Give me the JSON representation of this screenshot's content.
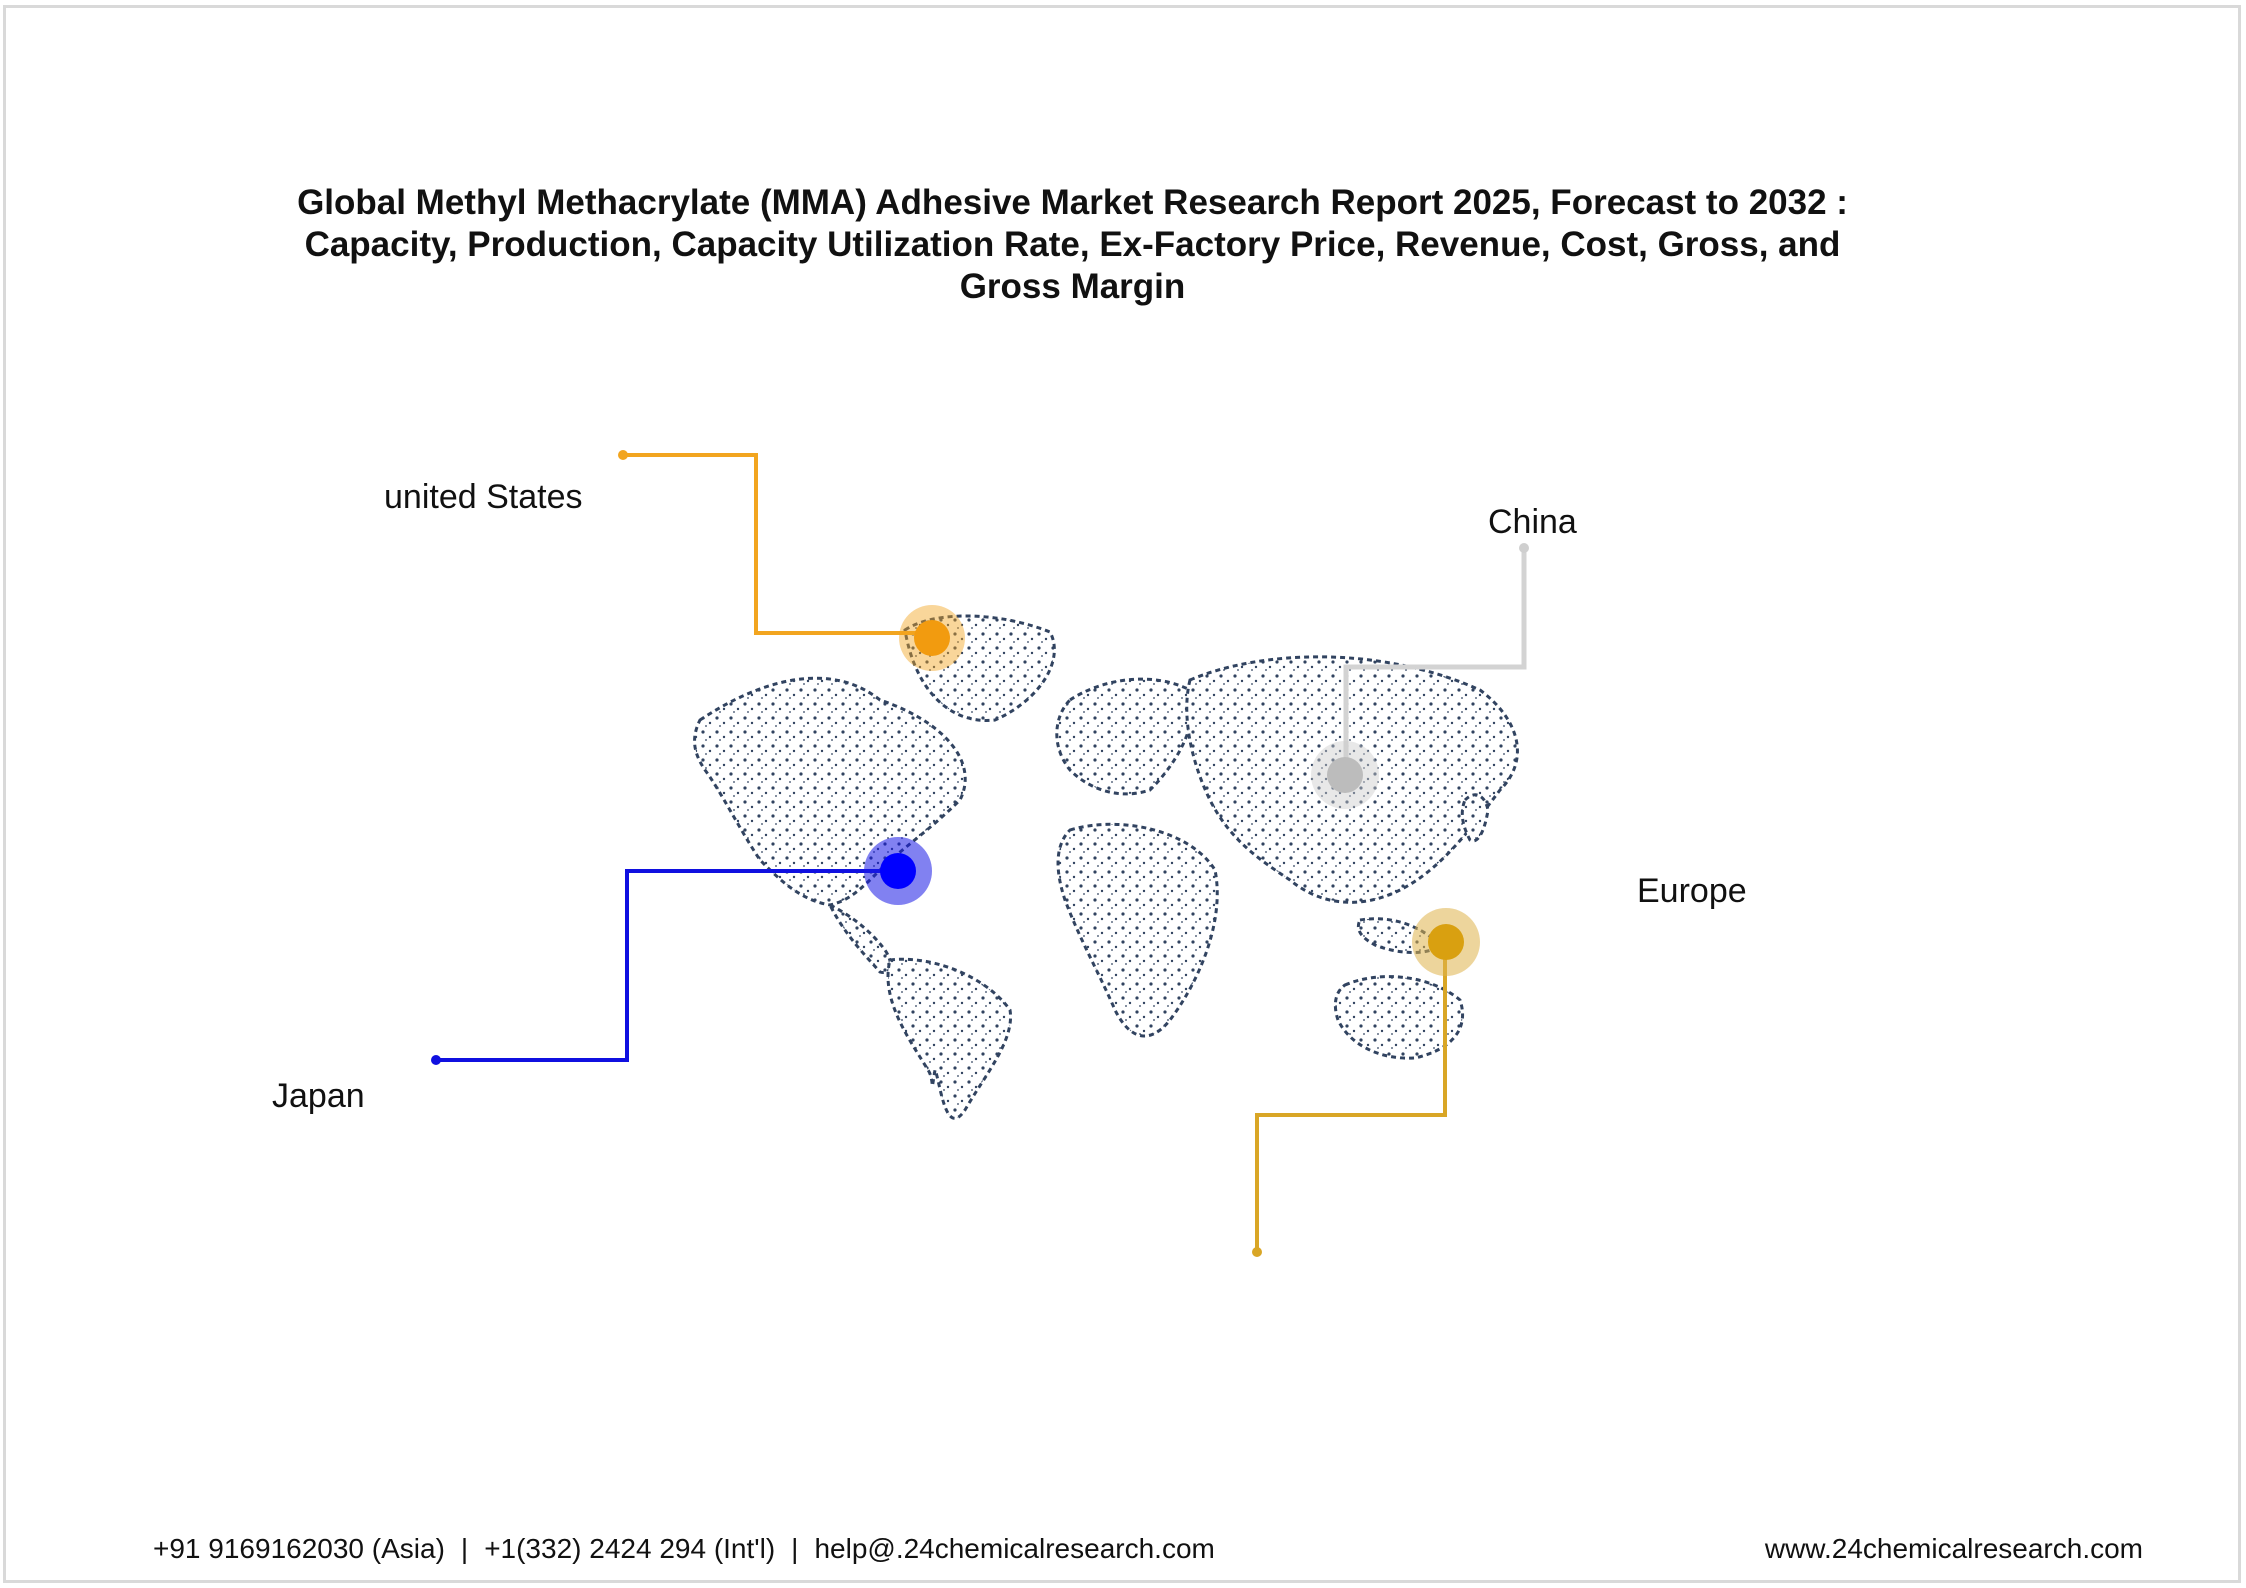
{
  "title": {
    "line1": "Global Methyl Methacrylate (MMA) Adhesive Market Research Report 2025, Forecast to 2032 :",
    "line2": "Capacity, Production, Capacity Utilization Rate, Ex-Factory Price, Revenue, Cost, Gross, and",
    "line3": "Gross Margin"
  },
  "regions": [
    {
      "label": "united States",
      "color": "#f2a51f"
    },
    {
      "label": "China",
      "color": "#cfcfcf"
    },
    {
      "label": "Europe",
      "color": "#d9a626"
    },
    {
      "label": "Japan",
      "color": "#1010e0"
    }
  ],
  "map": {
    "land_color": "#1b2f4f",
    "icon": "world-map-icon"
  },
  "footer": {
    "phone_asia": "+91 9169162030 (Asia)",
    "phone_intl": "+1(332) 2424 294 (Int'l)",
    "email": "help@.24chemicalresearch.com",
    "website": "www.24chemicalresearch.com",
    "separator": "|"
  }
}
